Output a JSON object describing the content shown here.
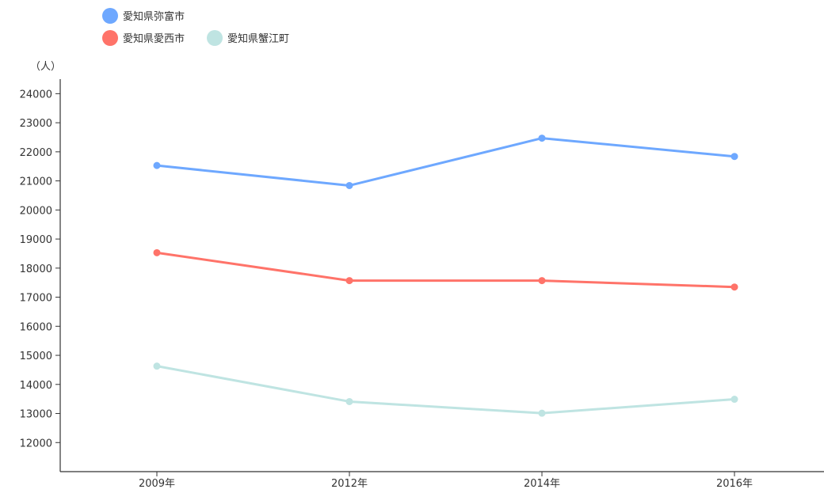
{
  "chart_data": {
    "type": "line",
    "title": "",
    "xlabel": "",
    "ylabel": "（人）",
    "categories": [
      "2009年",
      "2012年",
      "2014年",
      "2016年"
    ],
    "ylim": [
      11000,
      24500
    ],
    "yticks": [
      12000,
      13000,
      14000,
      15000,
      16000,
      17000,
      18000,
      19000,
      20000,
      21000,
      22000,
      23000,
      24000
    ],
    "grid": false,
    "legend_position": "top-left",
    "series": [
      {
        "name": "愛知県弥富市",
        "color": "#6ea8ff",
        "values": [
          21530,
          20840,
          22470,
          21840
        ]
      },
      {
        "name": "愛知県愛西市",
        "color": "#ff7369",
        "values": [
          18530,
          17570,
          17570,
          17350
        ]
      },
      {
        "name": "愛知県蟹江町",
        "color": "#bfe4e2",
        "values": [
          14630,
          13410,
          13010,
          13490
        ]
      }
    ]
  }
}
